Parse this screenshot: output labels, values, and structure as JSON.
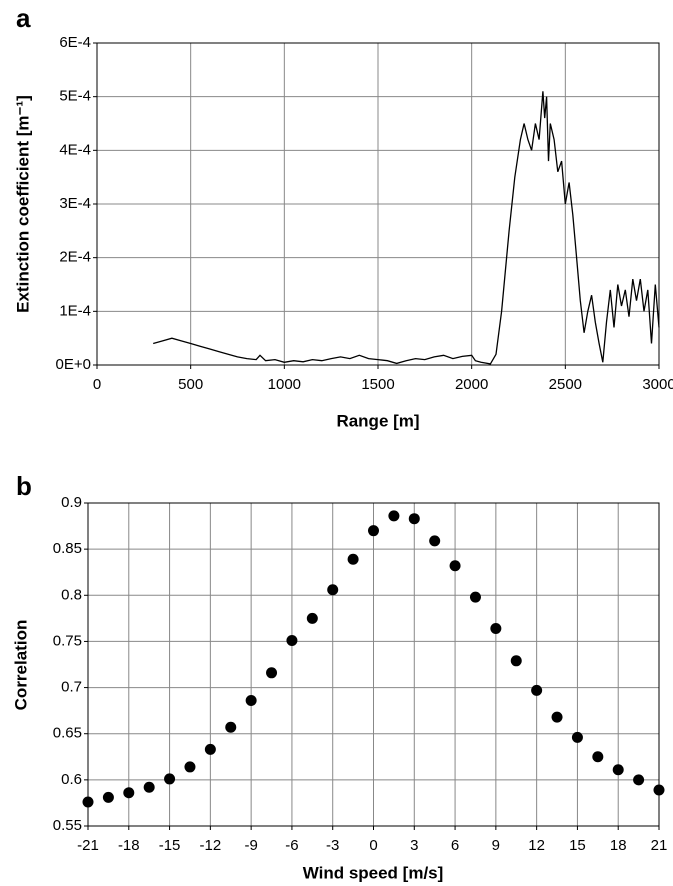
{
  "chart_data": [
    {
      "type": "line",
      "title": "a",
      "x_label": "Range [m]",
      "y_label": "Extinction coefficient [m⁻¹]",
      "x": [
        300,
        350,
        400,
        450,
        500,
        550,
        600,
        650,
        700,
        750,
        800,
        850,
        870,
        900,
        950,
        1000,
        1050,
        1100,
        1150,
        1200,
        1250,
        1300,
        1350,
        1400,
        1450,
        1500,
        1550,
        1600,
        1650,
        1700,
        1750,
        1800,
        1850,
        1900,
        1950,
        2000,
        2020,
        2050,
        2100,
        2130,
        2160,
        2200,
        2230,
        2260,
        2280,
        2300,
        2320,
        2340,
        2360,
        2380,
        2390,
        2400,
        2410,
        2420,
        2440,
        2460,
        2480,
        2500,
        2520,
        2540,
        2560,
        2580,
        2600,
        2620,
        2640,
        2660,
        2680,
        2700,
        2720,
        2740,
        2760,
        2780,
        2800,
        2820,
        2840,
        2860,
        2880,
        2900,
        2920,
        2940,
        2960,
        2980,
        3000
      ],
      "series": [
        {
          "color": "#000000",
          "values": [
            4e-05,
            4.5e-05,
            5e-05,
            4.5e-05,
            4e-05,
            3.5e-05,
            3e-05,
            2.5e-05,
            2e-05,
            1.5e-05,
            1.2e-05,
            1e-05,
            1.8e-05,
            8e-06,
            1e-05,
            5e-06,
            8e-06,
            6e-06,
            1e-05,
            8e-06,
            1.2e-05,
            1.5e-05,
            1.2e-05,
            1.8e-05,
            1.2e-05,
            1e-05,
            8e-06,
            3e-06,
            8e-06,
            1.2e-05,
            1e-05,
            1.5e-05,
            1.8e-05,
            1.2e-05,
            1.6e-05,
            1.8e-05,
            8e-06,
            5e-06,
            2e-06,
            2e-05,
            0.0001,
            0.00025,
            0.00035,
            0.00042,
            0.00045,
            0.00042,
            0.0004,
            0.00045,
            0.00042,
            0.00051,
            0.00046,
            0.0005,
            0.00038,
            0.00045,
            0.00042,
            0.00036,
            0.00038,
            0.0003,
            0.00034,
            0.00028,
            0.0002,
            0.00012,
            6e-05,
            0.0001,
            0.00013,
            8e-05,
            4e-05,
            5e-06,
            8e-05,
            0.00014,
            7e-05,
            0.00015,
            0.00011,
            0.00014,
            9e-05,
            0.00016,
            0.00012,
            0.00016,
            0.0001,
            0.00014,
            4e-05,
            0.00015,
            7e-05
          ]
        }
      ],
      "xlim": [
        0,
        3000
      ],
      "xticks": [
        0,
        500,
        1000,
        1500,
        2000,
        2500,
        3000
      ],
      "ylim": [
        0,
        0.0006
      ],
      "yticks": [
        {
          "value": 0,
          "label": "0E+0"
        },
        {
          "value": 0.0001,
          "label": "1E-4"
        },
        {
          "value": 0.0002,
          "label": "2E-4"
        },
        {
          "value": 0.0003,
          "label": "3E-4"
        },
        {
          "value": 0.0004,
          "label": "4E-4"
        },
        {
          "value": 0.0005,
          "label": "5E-4"
        },
        {
          "value": 0.0006,
          "label": "6E-4"
        }
      ],
      "grid": true
    },
    {
      "type": "scatter",
      "title": "b",
      "x_label": "Wind speed [m/s]",
      "y_label": "Correlation",
      "x": [
        -21,
        -19.5,
        -18,
        -16.5,
        -15,
        -13.5,
        -12,
        -10.5,
        -9,
        -7.5,
        -6,
        -4.5,
        -3,
        -1.5,
        0,
        1.5,
        3,
        4.5,
        6,
        7.5,
        9,
        10.5,
        12,
        13.5,
        15,
        16.5,
        18,
        19.5,
        21
      ],
      "series": [
        {
          "color": "#000000",
          "values": [
            0.576,
            0.581,
            0.586,
            0.592,
            0.601,
            0.614,
            0.633,
            0.657,
            0.686,
            0.716,
            0.751,
            0.775,
            0.806,
            0.839,
            0.87,
            0.886,
            0.883,
            0.859,
            0.832,
            0.798,
            0.764,
            0.729,
            0.697,
            0.668,
            0.646,
            0.625,
            0.611,
            0.6,
            0.589
          ]
        }
      ],
      "xlim": [
        -21,
        21
      ],
      "xticks": [
        -21,
        -18,
        -15,
        -12,
        -9,
        -6,
        -3,
        0,
        3,
        6,
        9,
        12,
        15,
        18,
        21
      ],
      "ylim": [
        0.55,
        0.9
      ],
      "yticks": [
        0.55,
        0.6,
        0.65,
        0.7,
        0.75,
        0.8,
        0.85,
        0.9
      ],
      "grid": true
    }
  ]
}
